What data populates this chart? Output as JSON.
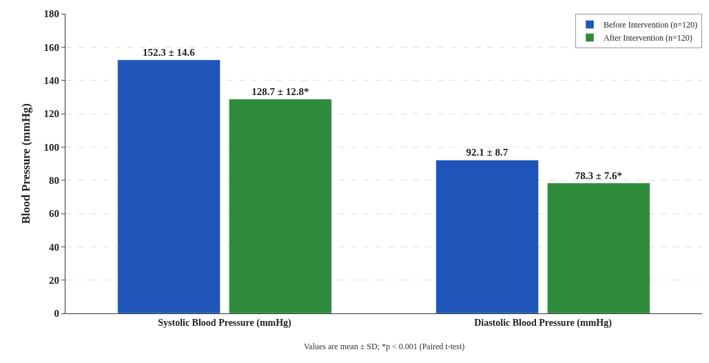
{
  "chart_data": {
    "type": "bar",
    "ylabel": "Blood Pressure (mmHg)",
    "categories": [
      "Systolic Blood Pressure (mmHg)",
      "Diastolic Blood Pressure (mmHg)"
    ],
    "series": [
      {
        "name": "Before Intervention (n=120)",
        "color": "#1f55b8",
        "values": [
          152.3,
          92.1
        ],
        "value_labels": [
          "152.3 ± 14.6",
          "92.1 ± 8.7"
        ]
      },
      {
        "name": "After Intervention (n=120)",
        "color": "#2e8b3c",
        "values": [
          128.7,
          78.3
        ],
        "value_labels": [
          "128.7 ± 12.8*",
          "78.3 ± 7.6*"
        ]
      }
    ],
    "ylim": [
      0,
      180
    ],
    "yticks": [
      0,
      20,
      40,
      60,
      80,
      100,
      120,
      140,
      160,
      180
    ],
    "grid": "y",
    "legend": "top right",
    "annotations": [
      "Values are mean ± SD; *p < 0.001 (Paired t-test)"
    ]
  }
}
